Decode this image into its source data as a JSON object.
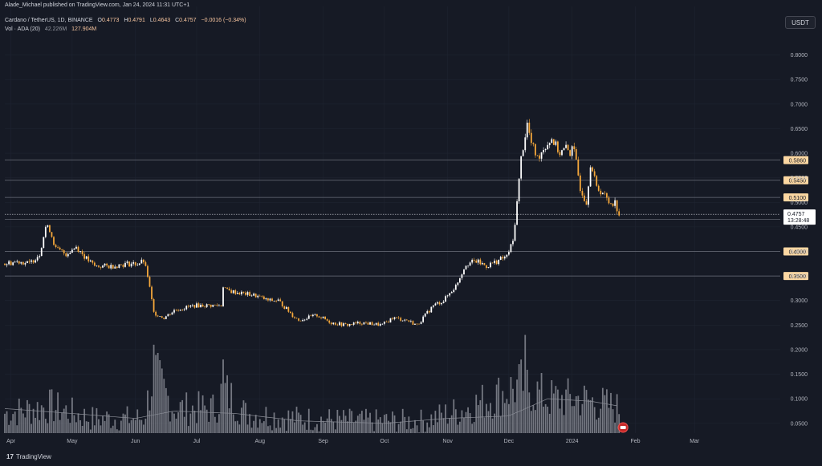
{
  "header": {
    "published": "Alade_Michael published on TradingView.com, Jan 24, 2024 11:31 UTC+1",
    "symbol": "Cardano / TetherUS, 1D, BINANCE",
    "ohlc": [
      {
        "k": "O",
        "v": "0.4773"
      },
      {
        "k": "H",
        "v": "0.4791"
      },
      {
        "k": "L",
        "v": "0.4643"
      },
      {
        "k": "C",
        "v": "0.4757"
      }
    ],
    "change": "−0.0016 (−0.34%)",
    "volume_label": "Vol · ADA (20)",
    "volume_ma": "42.226M",
    "volume_value": "127.904M"
  },
  "currency_button": "USDT",
  "footer": {
    "brand": "TradingView",
    "logo_text": "17"
  },
  "colors": {
    "background": "#161a25",
    "up": "#ffffff",
    "down": "#f7a93b",
    "volume": "#9598a1",
    "level_line": "#6b6f7a",
    "label_bg": "#fbd7a2"
  },
  "chart_data": {
    "type": "candlestick",
    "y_scale": "linear",
    "ylim": [
      0.03,
      0.85
    ],
    "y_ticks": [
      0.05,
      0.1,
      0.15,
      0.2,
      0.25,
      0.3,
      0.35,
      0.4,
      0.45,
      0.5,
      0.55,
      0.6,
      0.65,
      0.7,
      0.75,
      0.8
    ],
    "y_tick_labels": [
      "0.0500",
      "0.1000",
      "0.1500",
      "0.2000",
      "0.2500",
      "0.3000",
      "0.3500",
      "0.4000",
      "0.4500",
      "0.5000",
      "0.5500",
      "0.6000",
      "0.6500",
      "0.7000",
      "0.7500",
      "0.8000"
    ],
    "x_tick_labels": [
      {
        "label": "Apr",
        "date": "2023-04-01"
      },
      {
        "label": "May",
        "date": "2023-05-01"
      },
      {
        "label": "Jun",
        "date": "2023-06-01"
      },
      {
        "label": "Jul",
        "date": "2023-07-01"
      },
      {
        "label": "Aug",
        "date": "2023-08-01"
      },
      {
        "label": "Sep",
        "date": "2023-09-01"
      },
      {
        "label": "Oct",
        "date": "2023-10-01"
      },
      {
        "label": "Nov",
        "date": "2023-11-01"
      },
      {
        "label": "Dec",
        "date": "2023-12-01"
      },
      {
        "label": "2024",
        "date": "2024-01-01"
      },
      {
        "label": "Feb",
        "date": "2024-02-01"
      },
      {
        "label": "Mar",
        "date": "2024-03-01"
      }
    ],
    "x_range": [
      "2023-03-29",
      "2024-04-12"
    ],
    "candles_range": [
      "2023-03-29",
      "2024-01-24"
    ],
    "price_path": [
      [
        "2023-03-29",
        0.375
      ],
      [
        "2023-04-05",
        0.38
      ],
      [
        "2023-04-10",
        0.375
      ],
      [
        "2023-04-15",
        0.395
      ],
      [
        "2023-04-18",
        0.45
      ],
      [
        "2023-04-20",
        0.445
      ],
      [
        "2023-04-23",
        0.405
      ],
      [
        "2023-04-28",
        0.395
      ],
      [
        "2023-05-03",
        0.41
      ],
      [
        "2023-05-08",
        0.385
      ],
      [
        "2023-05-12",
        0.37
      ],
      [
        "2023-05-20",
        0.37
      ],
      [
        "2023-05-28",
        0.375
      ],
      [
        "2023-06-02",
        0.375
      ],
      [
        "2023-06-05",
        0.38
      ],
      [
        "2023-06-07",
        0.35
      ],
      [
        "2023-06-09",
        0.3
      ],
      [
        "2023-06-10",
        0.275
      ],
      [
        "2023-06-15",
        0.265
      ],
      [
        "2023-06-20",
        0.28
      ],
      [
        "2023-06-25",
        0.285
      ],
      [
        "2023-06-30",
        0.29
      ],
      [
        "2023-07-05",
        0.29
      ],
      [
        "2023-07-13",
        0.29
      ],
      [
        "2023-07-14",
        0.33
      ],
      [
        "2023-07-16",
        0.32
      ],
      [
        "2023-07-23",
        0.315
      ],
      [
        "2023-07-30",
        0.31
      ],
      [
        "2023-08-05",
        0.3
      ],
      [
        "2023-08-10",
        0.3
      ],
      [
        "2023-08-17",
        0.27
      ],
      [
        "2023-08-20",
        0.26
      ],
      [
        "2023-08-29",
        0.27
      ],
      [
        "2023-09-05",
        0.255
      ],
      [
        "2023-09-12",
        0.25
      ],
      [
        "2023-09-20",
        0.255
      ],
      [
        "2023-09-30",
        0.25
      ],
      [
        "2023-10-05",
        0.265
      ],
      [
        "2023-10-12",
        0.26
      ],
      [
        "2023-10-17",
        0.25
      ],
      [
        "2023-10-20",
        0.265
      ],
      [
        "2023-10-25",
        0.29
      ],
      [
        "2023-10-30",
        0.3
      ],
      [
        "2023-11-05",
        0.33
      ],
      [
        "2023-11-10",
        0.375
      ],
      [
        "2023-11-15",
        0.38
      ],
      [
        "2023-11-20",
        0.37
      ],
      [
        "2023-11-25",
        0.38
      ],
      [
        "2023-11-30",
        0.39
      ],
      [
        "2023-12-03",
        0.42
      ],
      [
        "2023-12-05",
        0.5
      ],
      [
        "2023-12-07",
        0.59
      ],
      [
        "2023-12-10",
        0.66
      ],
      [
        "2023-12-12",
        0.62
      ],
      [
        "2023-12-15",
        0.59
      ],
      [
        "2023-12-18",
        0.61
      ],
      [
        "2023-12-22",
        0.63
      ],
      [
        "2023-12-26",
        0.6
      ],
      [
        "2023-12-29",
        0.61
      ],
      [
        "2023-12-31",
        0.6
      ],
      [
        "2024-01-01",
        0.62
      ],
      [
        "2024-01-03",
        0.58
      ],
      [
        "2024-01-05",
        0.53
      ],
      [
        "2024-01-08",
        0.5
      ],
      [
        "2024-01-10",
        0.58
      ],
      [
        "2024-01-13",
        0.53
      ],
      [
        "2024-01-16",
        0.52
      ],
      [
        "2024-01-19",
        0.5
      ],
      [
        "2024-01-22",
        0.5
      ],
      [
        "2024-01-24",
        0.4757
      ]
    ],
    "volume_path": [
      [
        "2023-03-29",
        0.07
      ],
      [
        "2023-04-20",
        0.085
      ],
      [
        "2023-05-10",
        0.06
      ],
      [
        "2023-06-05",
        0.06
      ],
      [
        "2023-06-10",
        0.15
      ],
      [
        "2023-06-20",
        0.08
      ],
      [
        "2023-07-10",
        0.08
      ],
      [
        "2023-07-14",
        0.12
      ],
      [
        "2023-07-25",
        0.07
      ],
      [
        "2023-08-20",
        0.06
      ],
      [
        "2023-09-20",
        0.055
      ],
      [
        "2023-10-20",
        0.055
      ],
      [
        "2023-11-10",
        0.08
      ],
      [
        "2023-12-08",
        0.13
      ],
      [
        "2023-12-20",
        0.1
      ],
      [
        "2024-01-05",
        0.1
      ],
      [
        "2024-01-24",
        0.08
      ]
    ],
    "volume_spikes": [
      [
        "2023-06-10",
        0.21
      ],
      [
        "2023-07-14",
        0.18
      ],
      [
        "2023-12-09",
        0.23
      ]
    ],
    "volume_ma_path": [
      [
        "2023-03-29",
        0.08
      ],
      [
        "2023-05-01",
        0.07
      ],
      [
        "2023-06-01",
        0.06
      ],
      [
        "2023-06-20",
        0.075
      ],
      [
        "2023-07-20",
        0.07
      ],
      [
        "2023-08-20",
        0.055
      ],
      [
        "2023-10-01",
        0.05
      ],
      [
        "2023-11-01",
        0.06
      ],
      [
        "2023-12-01",
        0.065
      ],
      [
        "2023-12-20",
        0.1
      ],
      [
        "2024-01-10",
        0.095
      ],
      [
        "2024-01-24",
        0.085
      ]
    ],
    "horizontal_levels": [
      {
        "value": 0.586,
        "label": "0.5860"
      },
      {
        "value": 0.545,
        "label": "0.5450"
      },
      {
        "value": 0.51,
        "label": "0.5100"
      },
      {
        "value": 0.465,
        "label": "0.4650"
      },
      {
        "value": 0.4,
        "label": "0.4000"
      },
      {
        "value": 0.35,
        "label": "0.3500"
      }
    ],
    "last_price": {
      "value": 0.4757,
      "label": "0.4757",
      "countdown": "13:28:48"
    }
  }
}
